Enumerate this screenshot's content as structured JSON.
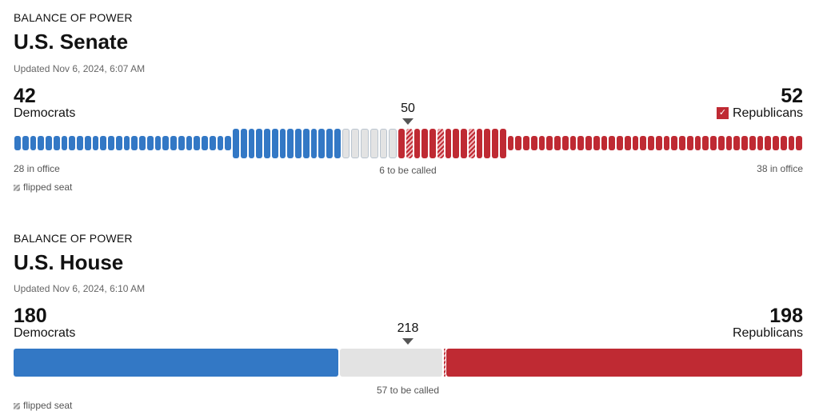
{
  "senate": {
    "kicker": "BALANCE OF POWER",
    "title": "U.S. Senate",
    "updated": "Updated Nov 6, 2024, 6:07 AM",
    "dem": {
      "count": "42",
      "label": "Democrats",
      "in_office": "28 in office"
    },
    "rep": {
      "count": "52",
      "label": "Republicans",
      "in_office": "38 in office",
      "winner": true
    },
    "majority": "50",
    "uncalled": "6 to be called",
    "legend": "flipped seat",
    "seats": {
      "dem_in_office": 28,
      "dem_won": 14,
      "uncalled": 6,
      "rep_won": [
        "R",
        "F",
        "R",
        "R",
        "R",
        "F",
        "R",
        "R",
        "R",
        "F",
        "R",
        "R",
        "R",
        "R"
      ],
      "rep_in_office": 38
    }
  },
  "house": {
    "kicker": "BALANCE OF POWER",
    "title": "U.S. House",
    "updated": "Updated Nov 6, 2024, 6:10 AM",
    "dem": {
      "count": "180",
      "label": "Democrats"
    },
    "rep": {
      "count": "198",
      "label": "Republicans"
    },
    "majority": "218",
    "uncalled": "57 to be called",
    "legend": "flipped seat",
    "total": 435,
    "rep_flipped": 1
  },
  "colors": {
    "dem": "#3378c5",
    "rep": "#bf2a33",
    "uncalled": "#e3e3e3"
  }
}
